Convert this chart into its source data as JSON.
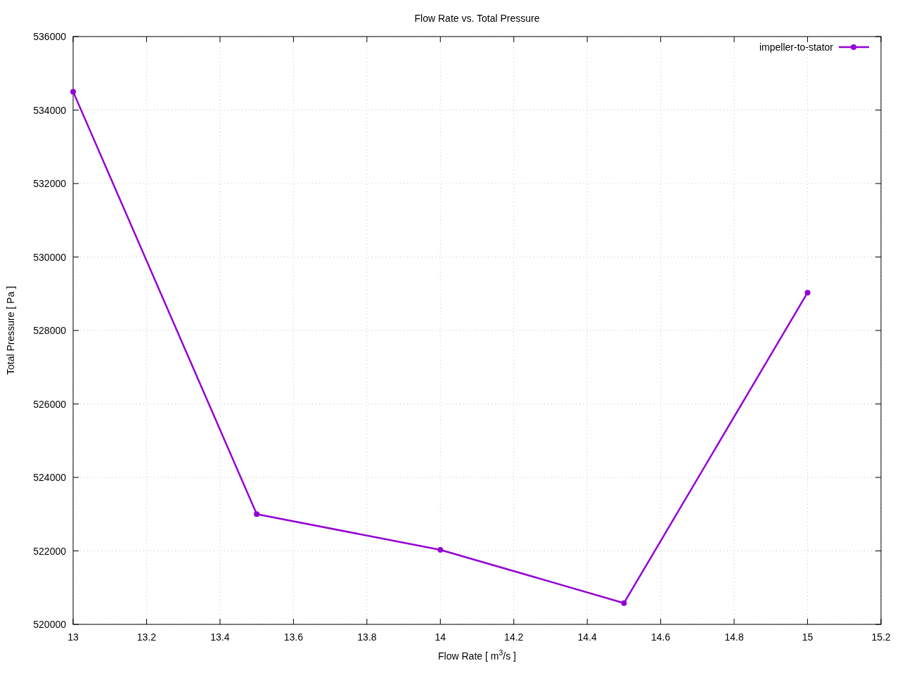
{
  "chart_data": {
    "type": "line",
    "title": "Flow Rate vs. Total Pressure",
    "xlabel": "Flow Rate [ m$^{3}$/s ]",
    "ylabel": "Total Pressure [ Pa ]",
    "x": [
      13,
      13.5,
      14,
      14.5,
      15
    ],
    "series": [
      {
        "name": "impeller-to-stator",
        "color": "#9400d3",
        "values": [
          534500,
          523000,
          522030,
          520580,
          529030
        ]
      }
    ],
    "xlim": [
      13,
      15.2
    ],
    "xticks": [
      13,
      13.2,
      13.4,
      13.6,
      13.8,
      14,
      14.2,
      14.4,
      14.6,
      14.8,
      15,
      15.2
    ],
    "ylim": [
      520000,
      536000
    ],
    "yticks": [
      520000,
      522000,
      524000,
      526000,
      528000,
      530000,
      532000,
      534000,
      536000
    ],
    "grid": true,
    "legend": "top right",
    "marker": "circle",
    "line_style": "solid"
  }
}
